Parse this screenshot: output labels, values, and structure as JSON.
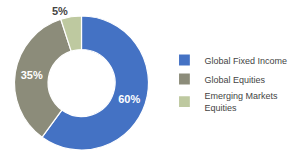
{
  "chart_data": {
    "type": "pie",
    "categories": [
      "Global Fixed Income",
      "Global Equities",
      "Emerging Markets\nEquities"
    ],
    "values": [
      60,
      35,
      5
    ],
    "value_labels": [
      "60%",
      "35%",
      "5%"
    ],
    "colors": [
      "#4472C4",
      "#8C8C7A",
      "#BEC9A0"
    ],
    "data_labels": true,
    "legend": "right"
  }
}
